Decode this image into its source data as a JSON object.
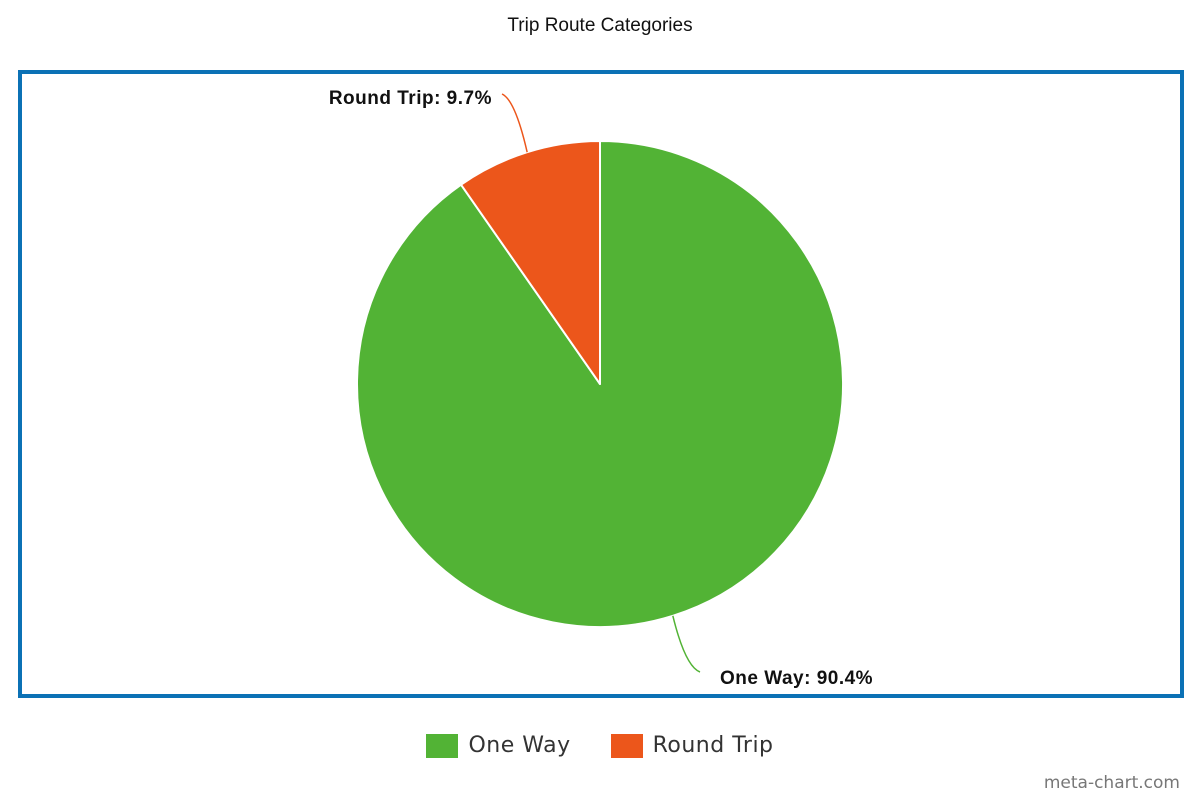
{
  "chart_data": {
    "type": "pie",
    "title": "Trip Route Categories",
    "slices": [
      {
        "name": "One Way",
        "value": 90.4,
        "label": "One Way: 90.4%",
        "color": "#52b335"
      },
      {
        "name": "Round Trip",
        "value": 9.7,
        "label": "Round Trip: 9.7%",
        "color": "#ec561b"
      }
    ],
    "legend": {
      "placement": "bottom"
    },
    "frame_color": "#0b71b5"
  },
  "credit": "meta-chart.com"
}
